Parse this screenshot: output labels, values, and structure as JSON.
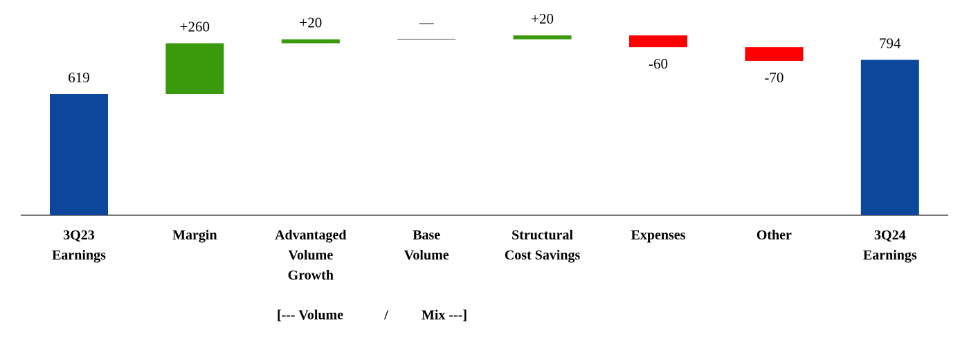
{
  "chart_data": {
    "type": "waterfall",
    "categories": [
      [
        "3Q23",
        "Earnings"
      ],
      [
        "Margin"
      ],
      [
        "Advantaged",
        "Volume",
        "Growth"
      ],
      [
        "Base",
        "Volume"
      ],
      [
        "Structural",
        "Cost Savings"
      ],
      [
        "Expenses"
      ],
      [
        "Other"
      ],
      [
        "3Q24",
        "Earnings"
      ]
    ],
    "values": [
      619,
      260,
      20,
      0,
      20,
      -60,
      -70,
      794
    ],
    "value_labels": [
      "619",
      "+260",
      "+20",
      "—",
      "+20",
      "-60",
      "-70",
      "794"
    ],
    "measure": [
      "total",
      "relative",
      "relative",
      "relative",
      "relative",
      "relative",
      "relative",
      "total"
    ],
    "colors": {
      "total": "#0d479c",
      "increase": "#3a9a0b",
      "decrease": "#ff0000",
      "zero": "#888888"
    },
    "annotations": [
      "[--- Volume",
      "/",
      "Mix ---]"
    ]
  }
}
